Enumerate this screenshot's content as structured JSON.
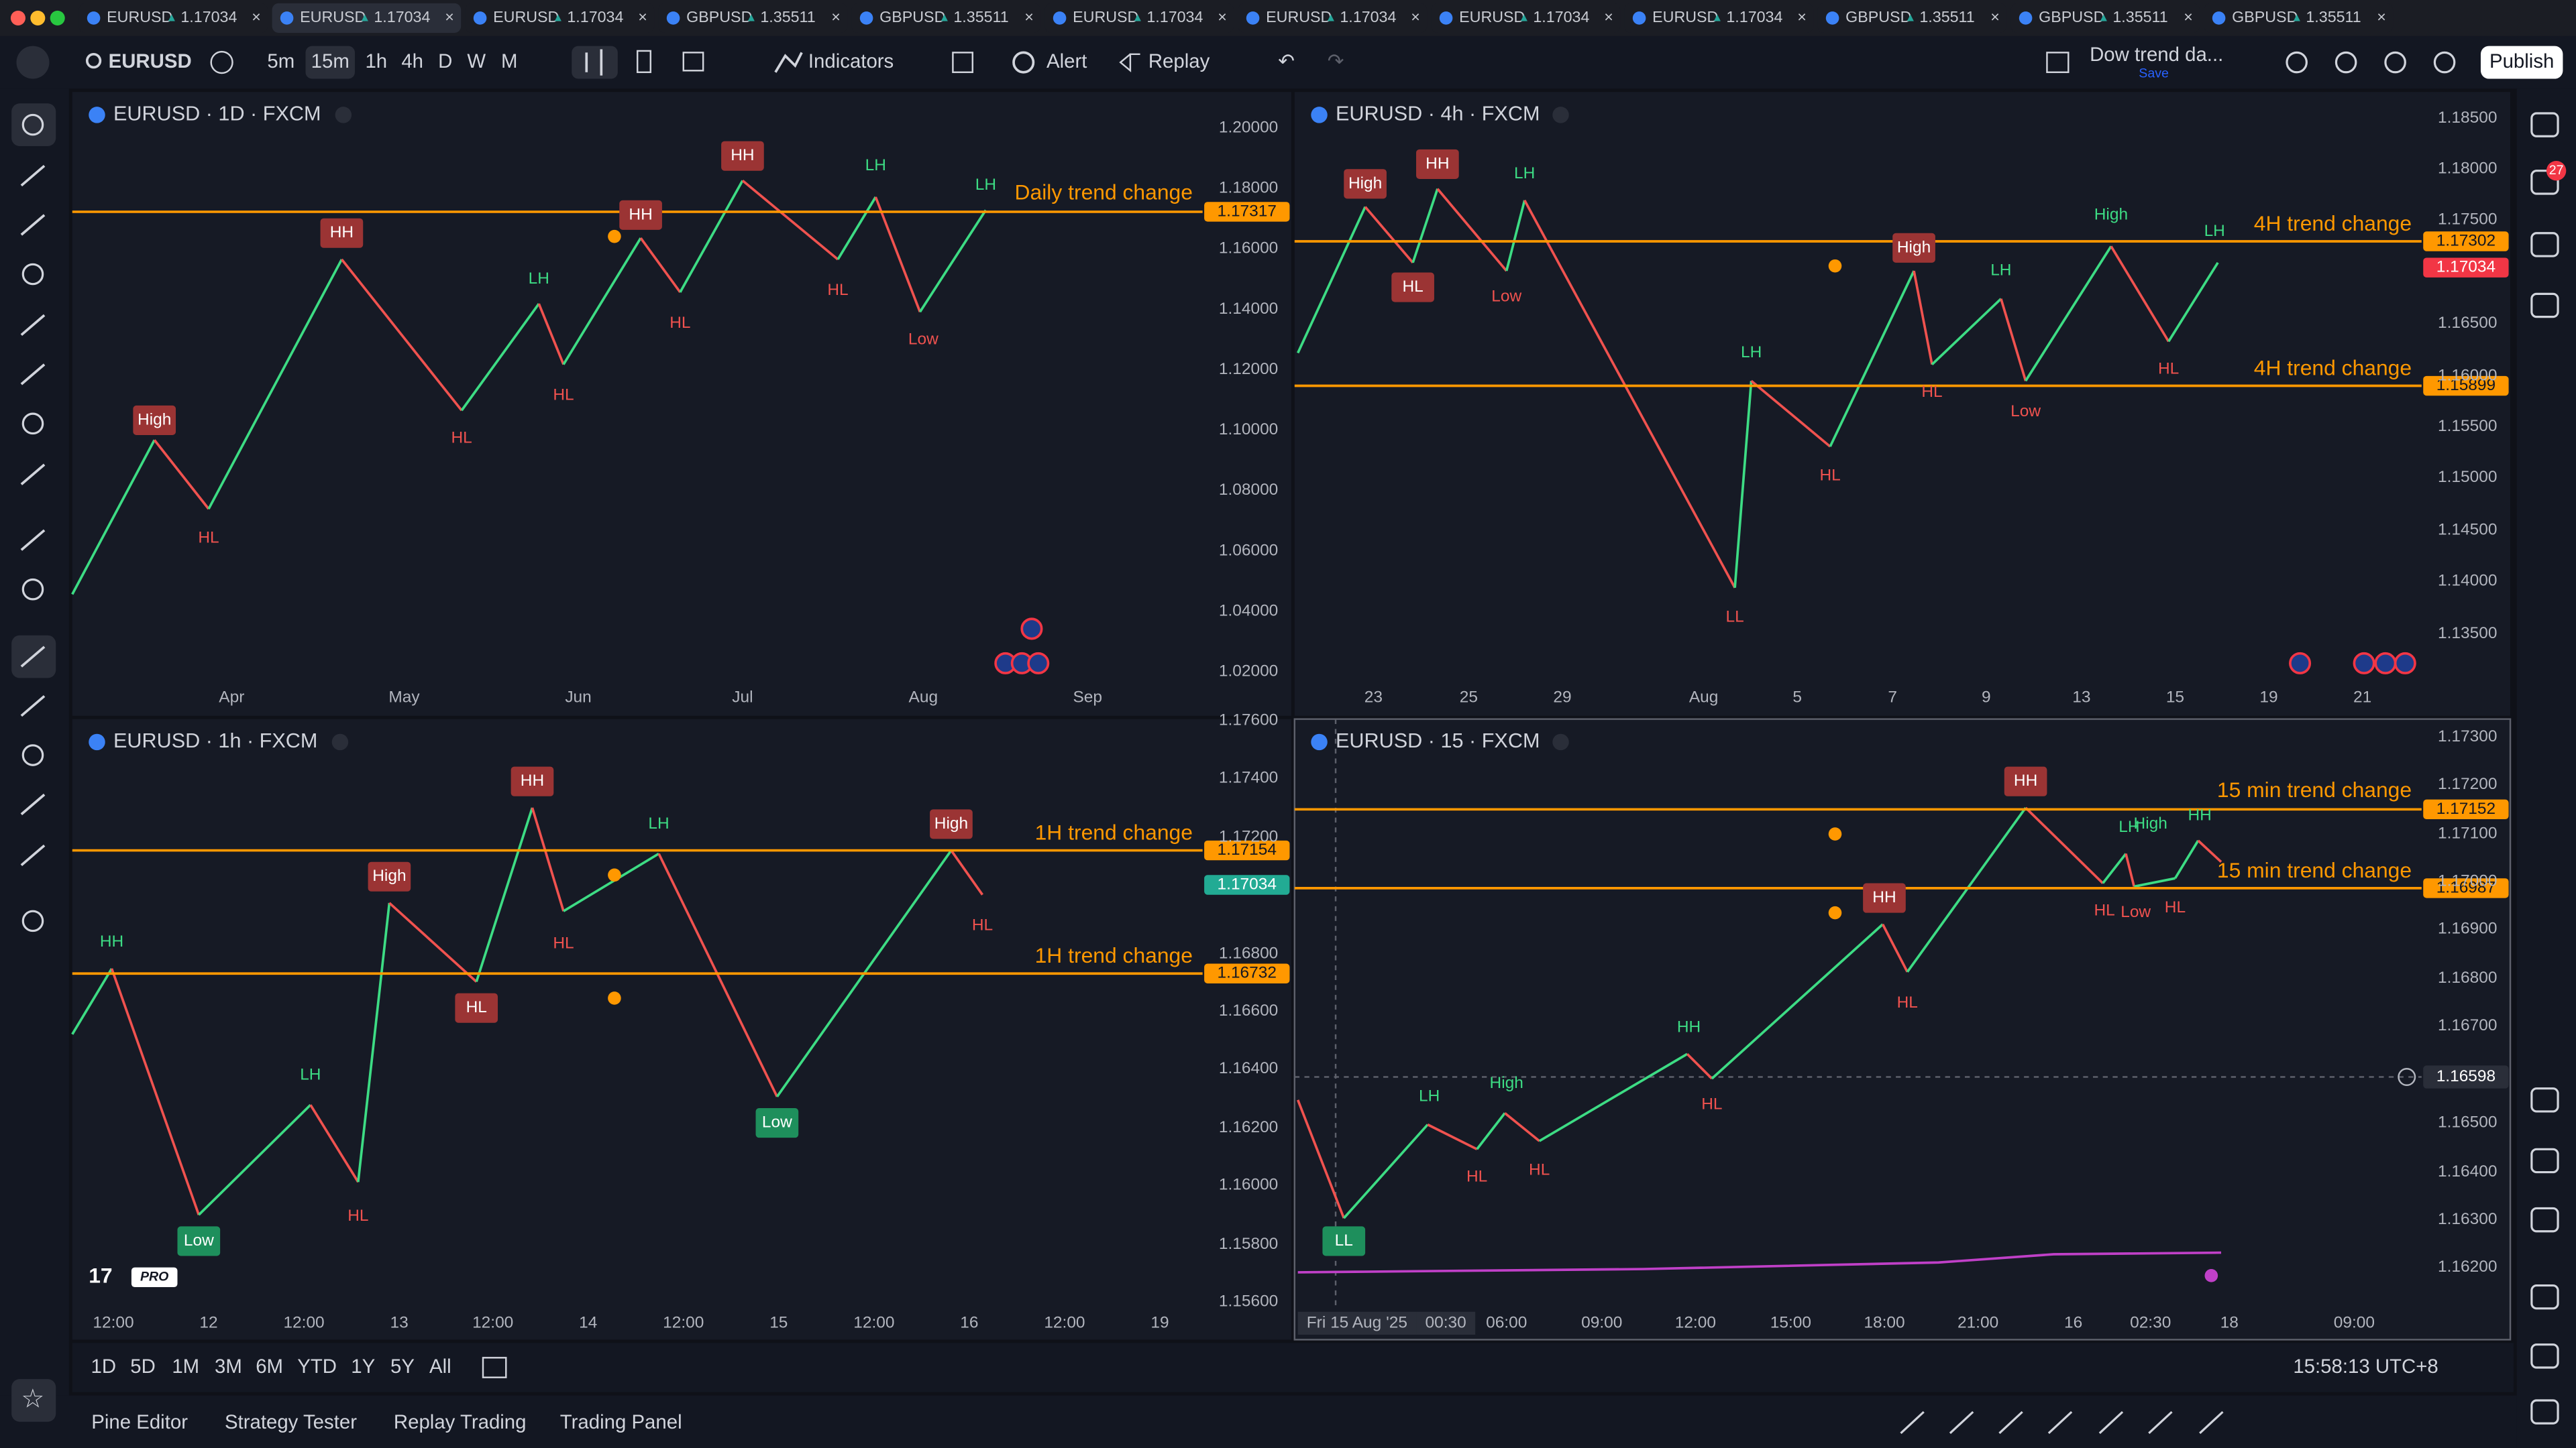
{
  "tabs": [
    {
      "symbol": "EURUSD",
      "price": "1.17034"
    },
    {
      "symbol": "EURUSD",
      "price": "1.17034"
    },
    {
      "symbol": "EURUSD",
      "price": "1.17034"
    },
    {
      "symbol": "GBPUSD",
      "price": "1.35511"
    },
    {
      "symbol": "GBPUSD",
      "price": "1.35511"
    },
    {
      "symbol": "EURUSD",
      "price": "1.17034"
    },
    {
      "symbol": "EURUSD",
      "price": "1.17034"
    },
    {
      "symbol": "EURUSD",
      "price": "1.17034"
    },
    {
      "symbol": "EURUSD",
      "price": "1.17034"
    },
    {
      "symbol": "GBPUSD",
      "price": "1.35511"
    },
    {
      "symbol": "GBPUSD",
      "price": "1.35511"
    },
    {
      "symbol": "GBPUSD",
      "price": "1.35511"
    }
  ],
  "toolbar": {
    "symbol": "EURUSD",
    "intervals": [
      "5m",
      "15m",
      "1h",
      "4h",
      "D",
      "W",
      "M"
    ],
    "indicators": "Indicators",
    "alert": "Alert",
    "replay": "Replay",
    "layout": "Dow trend da...",
    "save": "Save",
    "publish": "Publish"
  },
  "panes": [
    {
      "title": "EURUSD · 1D · FXCM",
      "price_ticks": [
        "1.20000",
        "1.18000",
        "1.16000",
        "1.14000",
        "1.12000",
        "1.10000",
        "1.08000",
        "1.06000",
        "1.04000",
        "1.02000"
      ],
      "time_labels": [
        "Apr",
        "May",
        "Jun",
        "Jul",
        "Aug",
        "Sep"
      ],
      "trend_lines": [
        {
          "label": "Daily trend change",
          "price": "1.17317"
        }
      ],
      "pivots": [
        "High",
        "HL",
        "HH",
        "HL",
        "LH",
        "HL",
        "HH",
        "HL",
        "HH",
        "LH",
        "HL",
        "Low",
        "LH"
      ]
    },
    {
      "title": "EURUSD · 4h · FXCM",
      "price_ticks": [
        "1.18500",
        "1.18000",
        "1.17500",
        "1.16500",
        "1.16000",
        "1.15500",
        "1.15000",
        "1.14500",
        "1.14000",
        "1.13500"
      ],
      "time_labels": [
        "23",
        "25",
        "29",
        "Aug",
        "5",
        "7",
        "9",
        "13",
        "15",
        "19",
        "21"
      ],
      "trend_lines": [
        {
          "label": "4H trend change",
          "price": "1.17302"
        },
        {
          "label": "4H trend change",
          "price": "1.15899"
        }
      ],
      "last_price": "1.17034",
      "pivots": [
        "High",
        "HH",
        "HL",
        "LH",
        "Low",
        "LH",
        "LL",
        "HL",
        "HL",
        "High",
        "LH",
        "Low",
        "High",
        "HL",
        "LH"
      ]
    },
    {
      "title": "EURUSD · 1h · FXCM",
      "price_ticks": [
        "1.17600",
        "1.17400",
        "1.17200",
        "1.16800",
        "1.16600",
        "1.16400",
        "1.16200",
        "1.16000",
        "1.15800",
        "1.15600"
      ],
      "time_labels": [
        "12:00",
        "12",
        "12:00",
        "13",
        "12:00",
        "14",
        "12:00",
        "15",
        "12:00",
        "16",
        "12:00",
        "19"
      ],
      "trend_lines": [
        {
          "label": "1H trend change",
          "price": "1.17154"
        },
        {
          "label": "1H trend change",
          "price": "1.16732"
        }
      ],
      "last_price": "1.17034",
      "logo": "PRO",
      "pivots": [
        "HH",
        "Low",
        "LH",
        "HL",
        "High",
        "HL",
        "HH",
        "HL",
        "LH",
        "Low",
        "High",
        "HL"
      ]
    },
    {
      "title": "EURUSD · 15 · FXCM",
      "price_ticks": [
        "1.17300",
        "1.17200",
        "1.17100",
        "1.17000",
        "1.16900",
        "1.16800",
        "1.16700",
        "1.16500",
        "1.16400",
        "1.16300",
        "1.16200"
      ],
      "time_labels": [
        "Fri 15 Aug '25",
        "00:30",
        "06:00",
        "09:00",
        "12:00",
        "15:00",
        "18:00",
        "21:00",
        "16",
        "02:30",
        "18",
        "09:00"
      ],
      "trend_lines": [
        {
          "label": "15 min trend change",
          "price": "1.17152"
        },
        {
          "label": "15 min trend change",
          "price": "1.16987"
        }
      ],
      "crosshair_price": "1.16598",
      "pivots": [
        "LL",
        "LH",
        "HL",
        "High",
        "HL",
        "HH",
        "HL",
        "HH",
        "HL",
        "HH",
        "HL",
        "LH",
        "High",
        "Low",
        "HL",
        "HH"
      ]
    }
  ],
  "range": {
    "periods": [
      "1D",
      "5D",
      "1M",
      "3M",
      "6M",
      "YTD",
      "1Y",
      "5Y",
      "All"
    ],
    "clock": "15:58:13 UTC+8"
  },
  "bottom_tabs": [
    "Pine Editor",
    "Strategy Tester",
    "Replay Trading",
    "Trading Panel"
  ],
  "notifications": "27"
}
